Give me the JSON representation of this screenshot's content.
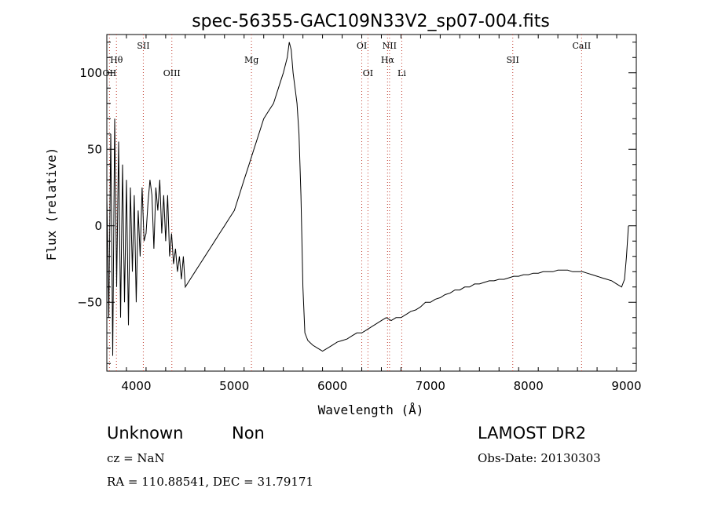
{
  "chart_data": {
    "type": "line",
    "title": "spec-56355-GAC109N33V2_sp07-004.fits",
    "xlabel": "Wavelength (Å)",
    "ylabel": "Flux (relative)",
    "xlim": [
      3700,
      9100
    ],
    "ylim": [
      -95,
      125
    ],
    "xticks": [
      4000,
      5000,
      6000,
      7000,
      8000,
      9000
    ],
    "yticks": [
      -50,
      0,
      50,
      100
    ],
    "grid": false,
    "series": [
      {
        "color": "#000000",
        "x": [
          3700,
          3720,
          3740,
          3760,
          3780,
          3800,
          3820,
          3840,
          3860,
          3880,
          3900,
          3920,
          3940,
          3960,
          3980,
          4000,
          4020,
          4040,
          4060,
          4080,
          4100,
          4120,
          4140,
          4160,
          4180,
          4200,
          4220,
          4240,
          4260,
          4280,
          4300,
          4320,
          4340,
          4360,
          4380,
          4400,
          4420,
          4440,
          4460,
          4480,
          4500,
          4550,
          4600,
          4650,
          4700,
          4750,
          4800,
          4850,
          4900,
          4950,
          5000,
          5050,
          5100,
          5150,
          5200,
          5250,
          5300,
          5350,
          5400,
          5450,
          5500,
          5520,
          5540,
          5560,
          5580,
          5600,
          5620,
          5640,
          5660,
          5680,
          5700,
          5720,
          5750,
          5800,
          5850,
          5900,
          5950,
          6000,
          6050,
          6100,
          6150,
          6200,
          6250,
          6300,
          6350,
          6400,
          6450,
          6500,
          6550,
          6600,
          6650,
          6700,
          6750,
          6800,
          6850,
          6900,
          6950,
          7000,
          7050,
          7100,
          7150,
          7200,
          7250,
          7300,
          7350,
          7400,
          7450,
          7500,
          7550,
          7600,
          7650,
          7700,
          7750,
          7800,
          7850,
          7900,
          7950,
          8000,
          8050,
          8100,
          8150,
          8200,
          8250,
          8300,
          8350,
          8400,
          8450,
          8500,
          8550,
          8600,
          8650,
          8700,
          8750,
          8800,
          8850,
          8900,
          8950,
          8980,
          9000,
          9020
        ],
        "y": [
          20,
          -60,
          60,
          -85,
          70,
          -40,
          55,
          -60,
          40,
          -50,
          30,
          -65,
          25,
          -30,
          20,
          -50,
          10,
          -20,
          25,
          -10,
          -5,
          15,
          30,
          20,
          -15,
          25,
          10,
          30,
          -5,
          20,
          -10,
          20,
          -20,
          -5,
          -25,
          -15,
          -30,
          -20,
          -35,
          -20,
          -40,
          -35,
          -30,
          -25,
          -20,
          -15,
          -10,
          -5,
          0,
          5,
          10,
          20,
          30,
          40,
          50,
          60,
          70,
          75,
          80,
          90,
          100,
          105,
          110,
          120,
          115,
          100,
          90,
          80,
          60,
          20,
          -40,
          -70,
          -75,
          -78,
          -80,
          -82,
          -80,
          -78,
          -76,
          -75,
          -74,
          -72,
          -70,
          -70,
          -68,
          -66,
          -64,
          -62,
          -60,
          -62,
          -60,
          -60,
          -58,
          -56,
          -55,
          -53,
          -50,
          -50,
          -48,
          -47,
          -45,
          -44,
          -42,
          -42,
          -40,
          -40,
          -38,
          -38,
          -37,
          -36,
          -36,
          -35,
          -35,
          -34,
          -33,
          -33,
          -32,
          -32,
          -31,
          -31,
          -30,
          -30,
          -30,
          -29,
          -29,
          -29,
          -30,
          -30,
          -30,
          -31,
          -32,
          -33,
          -34,
          -35,
          -36,
          -38,
          -40,
          -35,
          -20,
          0
        ]
      }
    ],
    "line_markers": [
      {
        "label": "OII",
        "wavelength": 3727,
        "row": 3
      },
      {
        "label": "Hθ",
        "wavelength": 3798,
        "row": 2
      },
      {
        "label": "SII",
        "wavelength": 4072,
        "row": 1
      },
      {
        "label": "OIII",
        "wavelength": 4363,
        "row": 3
      },
      {
        "label": "Mg",
        "wavelength": 5175,
        "row": 2
      },
      {
        "label": "OI",
        "wavelength": 6300,
        "row": 1
      },
      {
        "label": "OI",
        "wavelength": 6363,
        "row": 3
      },
      {
        "label": "NII",
        "wavelength": 6583,
        "row": 1
      },
      {
        "label": "Hα",
        "wavelength": 6563,
        "row": 2
      },
      {
        "label": "Li",
        "wavelength": 6708,
        "row": 3
      },
      {
        "label": "SII",
        "wavelength": 7840,
        "row": 2
      },
      {
        "label": "CaII",
        "wavelength": 8542,
        "row": 1
      }
    ]
  },
  "info": {
    "class": "Unknown",
    "subclass": "Non",
    "survey": "LAMOST DR2",
    "cz": "cz = NaN",
    "obs_date": "Obs-Date: 20130303",
    "coords": "RA = 110.88541, DEC =  31.79171"
  }
}
